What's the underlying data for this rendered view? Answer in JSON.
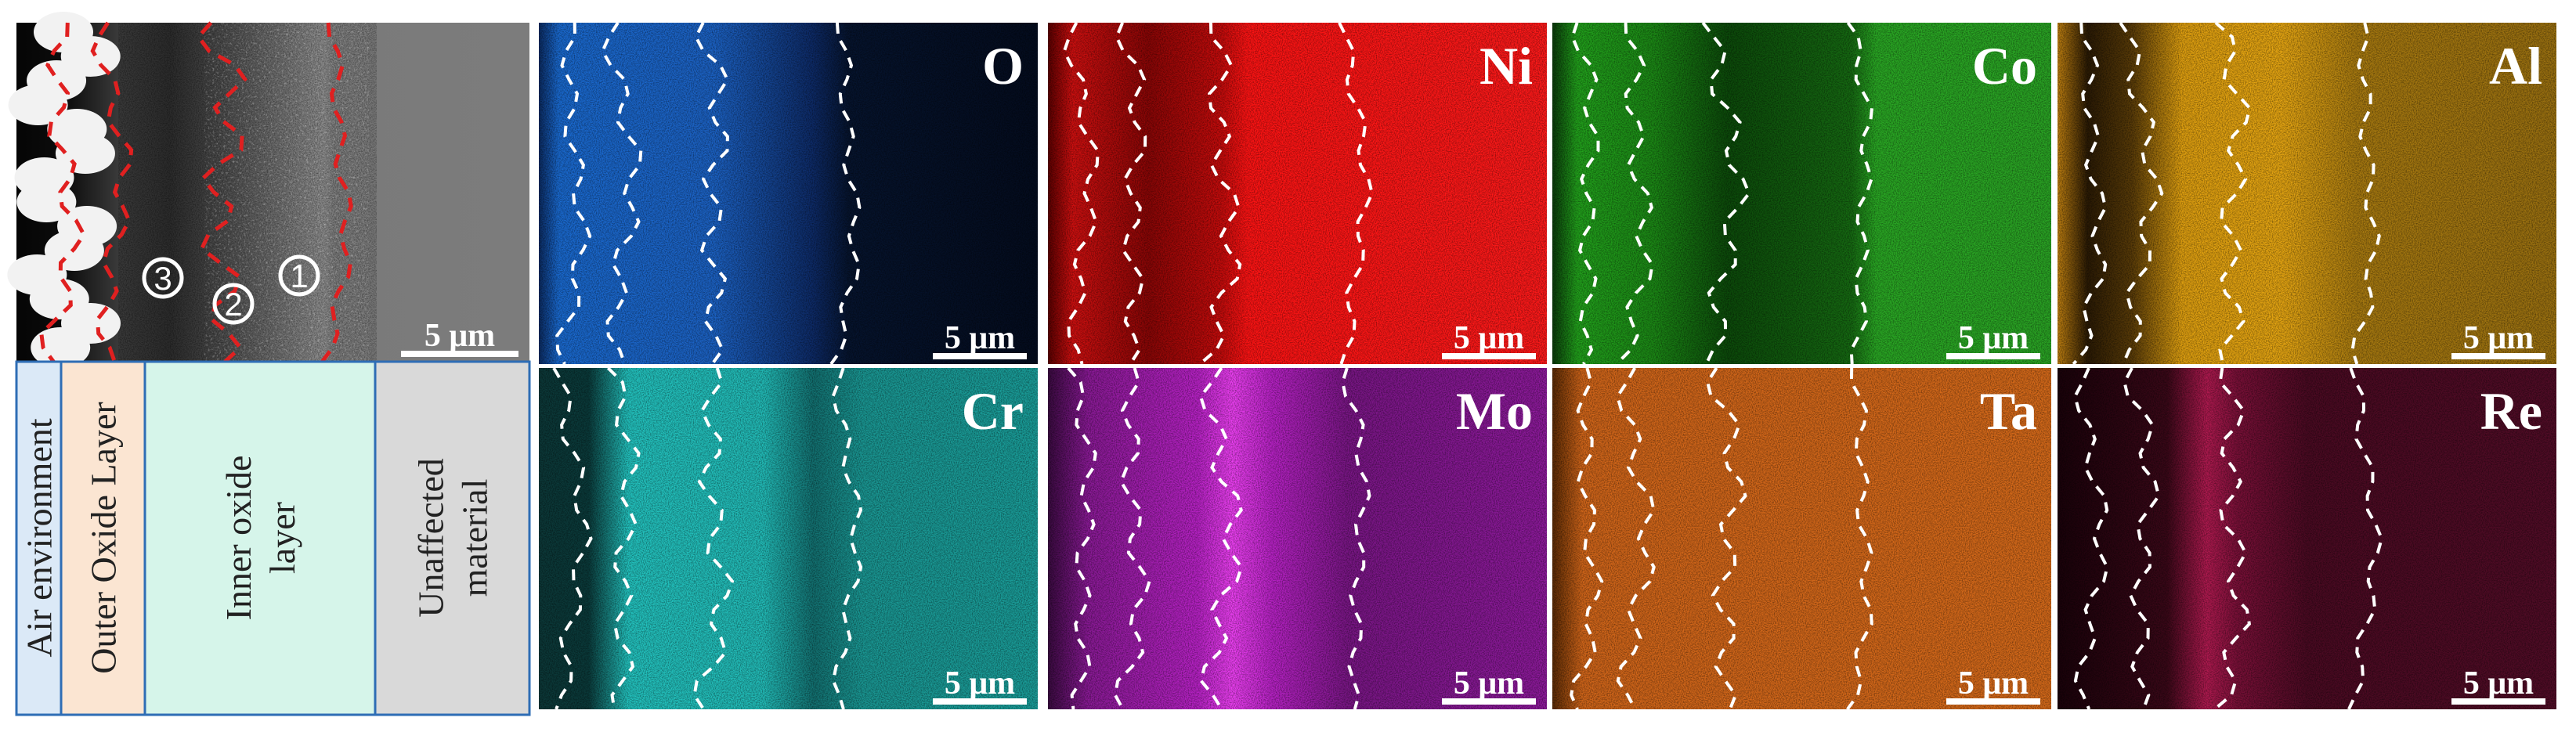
{
  "sem_image": {
    "markers": [
      "3",
      "2",
      "1"
    ],
    "scale_bar": "5 μm"
  },
  "regions": [
    {
      "lines": [
        "Air environment"
      ]
    },
    {
      "lines": [
        "Outer Oxide Layer"
      ]
    },
    {
      "lines": [
        "Inner oxide",
        "layer"
      ]
    },
    {
      "lines": [
        "Unaffected",
        "material"
      ]
    }
  ],
  "maps": [
    {
      "element": "O",
      "scale_bar": "5 μm"
    },
    {
      "element": "Ni",
      "scale_bar": "5 μm"
    },
    {
      "element": "Co",
      "scale_bar": "5 μm"
    },
    {
      "element": "Al",
      "scale_bar": "5 μm"
    },
    {
      "element": "Cr",
      "scale_bar": "5 μm"
    },
    {
      "element": "Mo",
      "scale_bar": "5 μm"
    },
    {
      "element": "Ta",
      "scale_bar": "5 μm"
    },
    {
      "element": "Re",
      "scale_bar": "5 μm"
    }
  ]
}
